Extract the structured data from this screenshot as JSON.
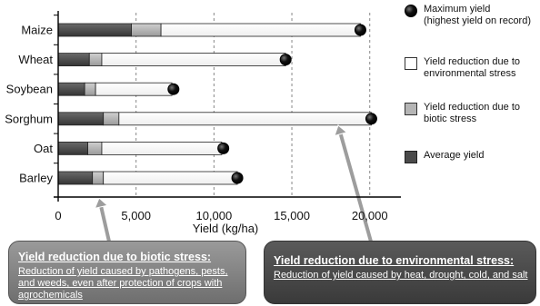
{
  "chart_data": {
    "type": "bar",
    "orientation": "horizontal",
    "stacked": true,
    "categories": [
      "Maize",
      "Wheat",
      "Soybean",
      "Sorghum",
      "Oat",
      "Barley"
    ],
    "series": [
      {
        "name": "Average yield",
        "values": [
          4700,
          2000,
          1700,
          2900,
          1900,
          2200
        ],
        "color": "#4a4a4a"
      },
      {
        "name": "Yield reduction due to biotic stress",
        "values": [
          1900,
          800,
          700,
          1000,
          900,
          700
        ],
        "color": "#b5b5b5"
      },
      {
        "name": "Yield reduction due to environmental stress",
        "values": [
          12800,
          11800,
          4900,
          16200,
          7700,
          8600
        ],
        "color": "#ffffff"
      }
    ],
    "maximum_yield": {
      "name": "Maximum yield (highest yield on record)",
      "values": [
        19400,
        14600,
        7400,
        20100,
        10600,
        11500
      ]
    },
    "xlabel": "Yield (kg/ha)",
    "xlim": [
      0,
      22000
    ],
    "xticks": [
      0,
      5000,
      10000,
      15000,
      20000
    ],
    "xtick_labels": [
      "0",
      "5,000",
      "10,000",
      "15,000",
      "20,000"
    ],
    "grid": "vertical dashed",
    "legend_position": "right"
  },
  "legend": [
    {
      "key": "max",
      "label": "Maximum yield\n(highest yield on record)"
    },
    {
      "key": "env",
      "label": "Yield reduction due to\nenvironmental stress"
    },
    {
      "key": "bio",
      "label": "Yield reduction due to\nbiotic stress"
    },
    {
      "key": "avg",
      "label": "Average yield"
    }
  ],
  "callouts": {
    "biotic": {
      "title": "Yield reduction due to biotic stress:",
      "text": "Reduction of yield caused by pathogens, pests, and weeds, even after protection of crops with agrochemicals"
    },
    "environmental": {
      "title": "Yield reduction due to environmental stress:",
      "text": "Reduction of yield caused by heat, drought, cold, and salt"
    }
  }
}
